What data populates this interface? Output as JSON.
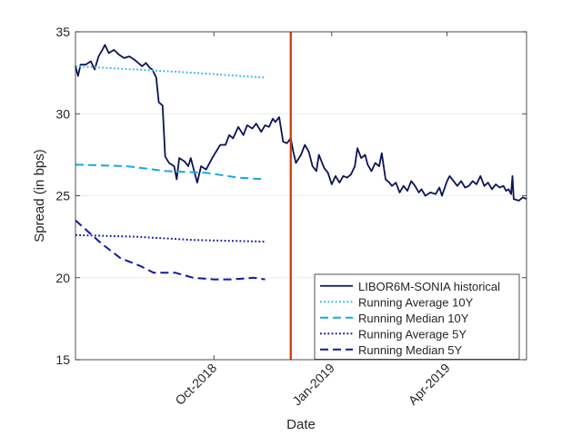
{
  "chart_data": {
    "type": "line",
    "title": "",
    "xlabel": "Date",
    "ylabel": "Spread (in bps)",
    "ylim": [
      15,
      35
    ],
    "xlim": [
      "2018-06-15",
      "2019-06-02"
    ],
    "yticks": [
      15,
      20,
      25,
      30,
      35
    ],
    "xticks": [
      {
        "date": "2018-10-01",
        "label": "Oct-2018"
      },
      {
        "date": "2019-01-01",
        "label": "Jan-2019"
      },
      {
        "date": "2019-04-01",
        "label": "Apr-2019"
      }
    ],
    "grid": "horizontal",
    "vertical_marker": {
      "date": "2018-11-30",
      "color": "#cc3300"
    },
    "legend_position": "bottom-right",
    "series": [
      {
        "name": "LIBOR6M-SONIA historical",
        "style": "solid",
        "color": "#0b1457",
        "points": [
          [
            "2018-06-15",
            32.9
          ],
          [
            "2018-06-17",
            32.3
          ],
          [
            "2018-06-19",
            33.0
          ],
          [
            "2018-06-23",
            33.0
          ],
          [
            "2018-06-27",
            33.2
          ],
          [
            "2018-06-30",
            32.7
          ],
          [
            "2018-07-03",
            33.5
          ],
          [
            "2018-07-06",
            33.9
          ],
          [
            "2018-07-08",
            34.2
          ],
          [
            "2018-07-11",
            33.7
          ],
          [
            "2018-07-15",
            33.9
          ],
          [
            "2018-07-19",
            33.6
          ],
          [
            "2018-07-23",
            33.4
          ],
          [
            "2018-07-27",
            33.5
          ],
          [
            "2018-07-31",
            33.3
          ],
          [
            "2018-08-03",
            33.1
          ],
          [
            "2018-08-06",
            32.9
          ],
          [
            "2018-08-09",
            33.1
          ],
          [
            "2018-08-12",
            32.8
          ],
          [
            "2018-08-14",
            32.7
          ],
          [
            "2018-08-17",
            32.2
          ],
          [
            "2018-08-19",
            30.7
          ],
          [
            "2018-08-22",
            30.5
          ],
          [
            "2018-08-24",
            27.4
          ],
          [
            "2018-08-27",
            27.0
          ],
          [
            "2018-08-31",
            26.8
          ],
          [
            "2018-09-02",
            26.0
          ],
          [
            "2018-09-04",
            27.3
          ],
          [
            "2018-09-08",
            27.1
          ],
          [
            "2018-09-11",
            26.8
          ],
          [
            "2018-09-13",
            27.3
          ],
          [
            "2018-09-16",
            26.4
          ],
          [
            "2018-09-18",
            25.8
          ],
          [
            "2018-09-21",
            26.8
          ],
          [
            "2018-09-25",
            26.6
          ],
          [
            "2018-09-29",
            27.2
          ],
          [
            "2018-10-02",
            27.6
          ],
          [
            "2018-10-06",
            28.1
          ],
          [
            "2018-10-10",
            28.1
          ],
          [
            "2018-10-13",
            28.7
          ],
          [
            "2018-10-16",
            28.5
          ],
          [
            "2018-10-20",
            29.2
          ],
          [
            "2018-10-24",
            28.7
          ],
          [
            "2018-10-27",
            29.3
          ],
          [
            "2018-10-31",
            29.1
          ],
          [
            "2018-11-03",
            29.4
          ],
          [
            "2018-11-07",
            28.9
          ],
          [
            "2018-11-10",
            29.3
          ],
          [
            "2018-11-13",
            29.2
          ],
          [
            "2018-11-16",
            29.7
          ],
          [
            "2018-11-18",
            29.5
          ],
          [
            "2018-11-21",
            29.8
          ],
          [
            "2018-11-24",
            28.3
          ],
          [
            "2018-11-27",
            28.2
          ],
          [
            "2018-11-30",
            28.5
          ],
          [
            "2018-12-02",
            27.7
          ],
          [
            "2018-12-04",
            27.0
          ],
          [
            "2018-12-08",
            27.5
          ],
          [
            "2018-12-11",
            28.1
          ],
          [
            "2018-12-14",
            27.7
          ],
          [
            "2018-12-17",
            26.8
          ],
          [
            "2018-12-20",
            26.5
          ],
          [
            "2018-12-22",
            27.5
          ],
          [
            "2018-12-26",
            26.7
          ],
          [
            "2018-12-29",
            26.4
          ],
          [
            "2019-01-01",
            25.7
          ],
          [
            "2019-01-04",
            26.2
          ],
          [
            "2019-01-07",
            25.8
          ],
          [
            "2019-01-10",
            26.2
          ],
          [
            "2019-01-13",
            26.1
          ],
          [
            "2019-01-16",
            26.3
          ],
          [
            "2019-01-19",
            26.8
          ],
          [
            "2019-01-21",
            27.9
          ],
          [
            "2019-01-24",
            27.3
          ],
          [
            "2019-01-27",
            27.5
          ],
          [
            "2019-01-29",
            26.9
          ],
          [
            "2019-02-01",
            26.5
          ],
          [
            "2019-02-04",
            27.0
          ],
          [
            "2019-02-07",
            26.8
          ],
          [
            "2019-02-09",
            27.6
          ],
          [
            "2019-02-12",
            26.0
          ],
          [
            "2019-02-15",
            25.8
          ],
          [
            "2019-02-17",
            25.6
          ],
          [
            "2019-02-20",
            25.8
          ],
          [
            "2019-02-23",
            25.2
          ],
          [
            "2019-02-26",
            25.6
          ],
          [
            "2019-02-29",
            25.3
          ],
          [
            "2019-03-04",
            25.9
          ],
          [
            "2019-03-07",
            25.6
          ],
          [
            "2019-03-10",
            25.2
          ],
          [
            "2019-03-12",
            25.4
          ],
          [
            "2019-03-15",
            25.0
          ],
          [
            "2019-03-19",
            25.2
          ],
          [
            "2019-03-23",
            25.1
          ],
          [
            "2019-03-26",
            25.5
          ],
          [
            "2019-03-28",
            25.0
          ],
          [
            "2019-04-01",
            25.9
          ],
          [
            "2019-04-03",
            26.2
          ],
          [
            "2019-04-06",
            25.9
          ],
          [
            "2019-04-09",
            25.6
          ],
          [
            "2019-04-12",
            25.9
          ],
          [
            "2019-04-15",
            25.5
          ],
          [
            "2019-04-18",
            25.6
          ],
          [
            "2019-04-21",
            25.9
          ],
          [
            "2019-04-24",
            25.7
          ],
          [
            "2019-04-27",
            26.2
          ],
          [
            "2019-04-30",
            25.6
          ],
          [
            "2019-05-03",
            25.8
          ],
          [
            "2019-05-06",
            25.4
          ],
          [
            "2019-05-09",
            25.7
          ],
          [
            "2019-05-12",
            25.5
          ],
          [
            "2019-05-15",
            25.6
          ],
          [
            "2019-05-17",
            25.3
          ],
          [
            "2019-05-19",
            25.4
          ],
          [
            "2019-05-21",
            25.1
          ],
          [
            "2019-05-22",
            26.2
          ],
          [
            "2019-05-23",
            24.8
          ],
          [
            "2019-05-27",
            24.7
          ],
          [
            "2019-05-30",
            24.9
          ],
          [
            "2019-06-02",
            24.8
          ]
        ]
      },
      {
        "name": "Running Average 10Y",
        "style": "dotted",
        "color": "#33b5f0",
        "points": [
          [
            "2018-06-15",
            32.9
          ],
          [
            "2018-08-01",
            32.7
          ],
          [
            "2018-09-15",
            32.5
          ],
          [
            "2018-11-10",
            32.2
          ]
        ]
      },
      {
        "name": "Running Median 10Y",
        "style": "dashed",
        "color": "#17a8e3",
        "points": [
          [
            "2018-06-15",
            26.9
          ],
          [
            "2018-07-25",
            26.8
          ],
          [
            "2018-08-25",
            26.5
          ],
          [
            "2018-09-25",
            26.4
          ],
          [
            "2018-10-20",
            26.1
          ],
          [
            "2018-11-10",
            26.0
          ]
        ]
      },
      {
        "name": "Running Average 5Y",
        "style": "dotted",
        "color": "#1018a8",
        "points": [
          [
            "2018-06-15",
            22.6
          ],
          [
            "2018-08-01",
            22.5
          ],
          [
            "2018-09-15",
            22.3
          ],
          [
            "2018-11-10",
            22.2
          ]
        ]
      },
      {
        "name": "Running Median 5Y",
        "style": "dashed",
        "color": "#1018a8",
        "points": [
          [
            "2018-06-15",
            23.5
          ],
          [
            "2018-06-25",
            22.8
          ],
          [
            "2018-07-05",
            22.1
          ],
          [
            "2018-07-20",
            21.2
          ],
          [
            "2018-08-05",
            20.7
          ],
          [
            "2018-08-15",
            20.3
          ],
          [
            "2018-09-01",
            20.3
          ],
          [
            "2018-09-15",
            20.0
          ],
          [
            "2018-10-01",
            19.9
          ],
          [
            "2018-10-15",
            19.9
          ],
          [
            "2018-11-01",
            20.0
          ],
          [
            "2018-11-10",
            19.9
          ]
        ]
      }
    ]
  }
}
